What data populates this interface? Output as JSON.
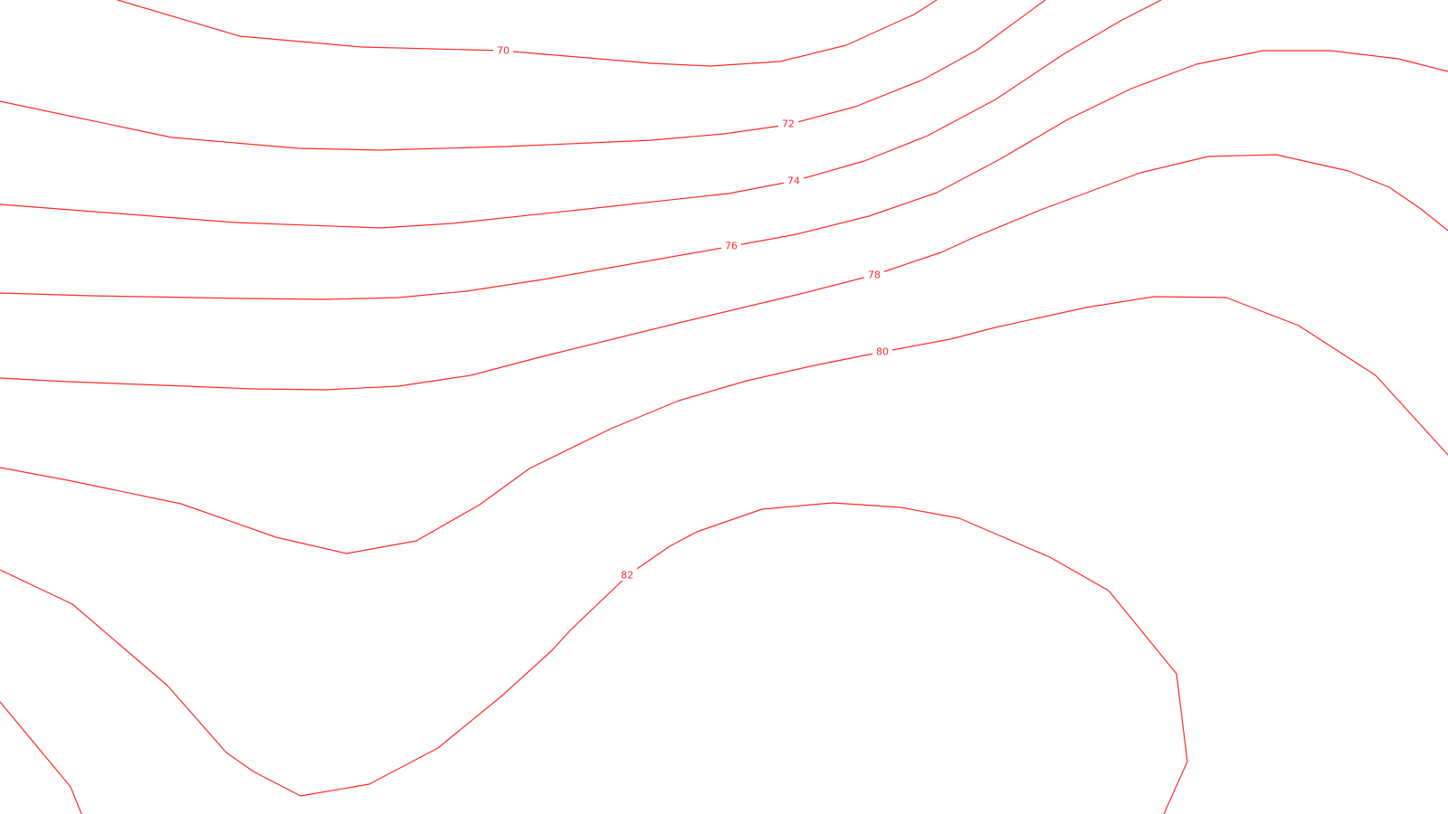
{
  "map": {
    "line_color": "#ff2a2a",
    "background": "#ffffff",
    "contours": [
      {
        "label": "70"
      },
      {
        "label": "72"
      },
      {
        "label": "74"
      },
      {
        "label": "76"
      },
      {
        "label": "78"
      },
      {
        "label": "80"
      },
      {
        "label": "82"
      }
    ]
  }
}
